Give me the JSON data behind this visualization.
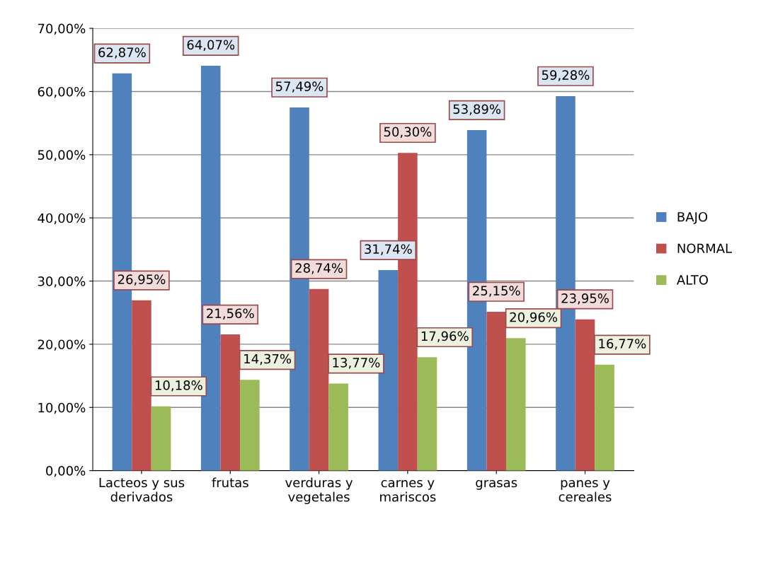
{
  "chart_data": {
    "type": "bar",
    "categories": [
      "Lacteos y sus derivados",
      "frutas",
      "verduras y vegetales",
      "carnes y mariscos",
      "grasas",
      "panes y cereales"
    ],
    "series": [
      {
        "name": "BAJO",
        "color": "#4f81bd",
        "values": [
          62.87,
          64.07,
          57.49,
          31.74,
          53.89,
          59.28
        ],
        "value_labels": [
          "62,87%",
          "64,07%",
          "57,49%",
          "31,74%",
          "53,89%",
          "59,28%"
        ]
      },
      {
        "name": "NORMAL",
        "color": "#c0504d",
        "values": [
          26.95,
          21.56,
          28.74,
          50.3,
          25.15,
          23.95
        ],
        "value_labels": [
          "26,95%",
          "21,56%",
          "28,74%",
          "50,30%",
          "25,15%",
          "23,95%"
        ]
      },
      {
        "name": "ALTO",
        "color": "#9bbb59",
        "values": [
          10.18,
          14.37,
          13.77,
          17.96,
          20.96,
          16.77
        ],
        "value_labels": [
          "10,18%",
          "14,37%",
          "13,77%",
          "17,96%",
          "20,96%",
          "16,77%"
        ]
      }
    ],
    "ylim": [
      0,
      70
    ],
    "yticks": [
      {
        "value": 0,
        "label": "0,00%"
      },
      {
        "value": 10,
        "label": "10,00%"
      },
      {
        "value": 20,
        "label": "20,00%"
      },
      {
        "value": 30,
        "label": "30,00%"
      },
      {
        "value": 40,
        "label": "40,00%"
      },
      {
        "value": 50,
        "label": "50,00%"
      },
      {
        "value": 60,
        "label": "60,00%"
      },
      {
        "value": 70,
        "label": "70,00%"
      }
    ],
    "grid": "y",
    "legend": "right"
  }
}
